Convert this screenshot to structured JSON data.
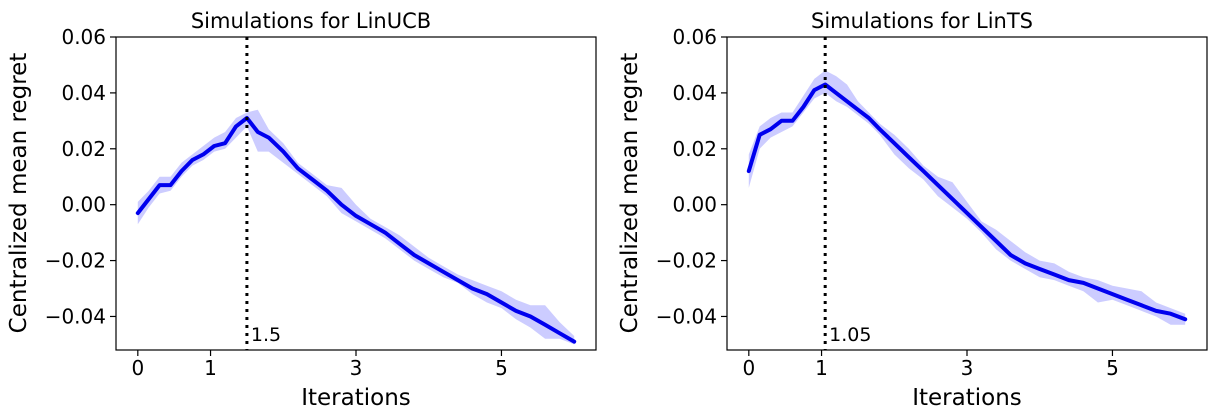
{
  "chart_data": [
    {
      "type": "line",
      "title": "Simulations for LinUCB",
      "xlabel": "Iterations",
      "ylabel": "Centralized mean regret",
      "xlim": [
        -0.3,
        6.3
      ],
      "ylim": [
        -0.052,
        0.06
      ],
      "xticks": [
        0,
        1,
        3,
        5
      ],
      "xtick_labels": [
        "0",
        "1",
        "3",
        "5"
      ],
      "yticks": [
        -0.04,
        -0.02,
        0.0,
        0.02,
        0.04,
        0.06
      ],
      "ytick_labels": [
        "−0.04",
        "−0.02",
        "0.00",
        "0.02",
        "0.04",
        "0.06"
      ],
      "vline": {
        "x": 1.5,
        "label": "1.5"
      },
      "series": [
        {
          "color": "#0000ee",
          "band_color": "#ccccff",
          "x": [
            0,
            0.15,
            0.3,
            0.45,
            0.6,
            0.75,
            0.9,
            1.05,
            1.2,
            1.35,
            1.5,
            1.65,
            1.8,
            2.0,
            2.2,
            2.4,
            2.6,
            2.8,
            3.0,
            3.2,
            3.4,
            3.6,
            3.8,
            4.0,
            4.2,
            4.4,
            4.6,
            4.8,
            5.0,
            5.2,
            5.4,
            5.6,
            5.8,
            6.0
          ],
          "mean": [
            -0.003,
            0.002,
            0.007,
            0.007,
            0.012,
            0.016,
            0.018,
            0.021,
            0.022,
            0.028,
            0.031,
            0.026,
            0.024,
            0.019,
            0.013,
            0.009,
            0.005,
            0.0,
            -0.004,
            -0.007,
            -0.01,
            -0.014,
            -0.018,
            -0.021,
            -0.024,
            -0.027,
            -0.03,
            -0.032,
            -0.035,
            -0.038,
            -0.04,
            -0.043,
            -0.046,
            -0.049
          ],
          "lower": [
            -0.007,
            -0.001,
            0.004,
            0.005,
            0.01,
            0.014,
            0.016,
            0.019,
            0.02,
            0.024,
            0.028,
            0.019,
            0.019,
            0.015,
            0.011,
            0.007,
            0.003,
            -0.003,
            -0.006,
            -0.009,
            -0.012,
            -0.016,
            -0.02,
            -0.023,
            -0.026,
            -0.028,
            -0.032,
            -0.035,
            -0.037,
            -0.041,
            -0.044,
            -0.048,
            -0.048,
            -0.05
          ],
          "upper": [
            0.001,
            0.005,
            0.01,
            0.01,
            0.015,
            0.018,
            0.021,
            0.024,
            0.026,
            0.031,
            0.033,
            0.034,
            0.027,
            0.022,
            0.015,
            0.011,
            0.007,
            0.006,
            0.0,
            -0.005,
            -0.008,
            -0.011,
            -0.015,
            -0.019,
            -0.022,
            -0.025,
            -0.027,
            -0.029,
            -0.031,
            -0.034,
            -0.036,
            -0.036,
            -0.042,
            -0.047
          ]
        }
      ]
    },
    {
      "type": "line",
      "title": "Simulations for LinTS",
      "xlabel": "Iterations",
      "ylabel": "Centralized mean regret",
      "xlim": [
        -0.3,
        6.3
      ],
      "ylim": [
        -0.052,
        0.06
      ],
      "xticks": [
        0,
        1,
        3,
        5
      ],
      "xtick_labels": [
        "0",
        "1",
        "3",
        "5"
      ],
      "yticks": [
        -0.04,
        -0.02,
        0.0,
        0.02,
        0.04,
        0.06
      ],
      "ytick_labels": [
        "−0.04",
        "−0.02",
        "0.00",
        "0.02",
        "0.04",
        "0.06"
      ],
      "vline": {
        "x": 1.05,
        "label": "1.05"
      },
      "series": [
        {
          "color": "#0000ee",
          "band_color": "#ccccff",
          "x": [
            0,
            0.15,
            0.3,
            0.45,
            0.6,
            0.75,
            0.9,
            1.05,
            1.2,
            1.35,
            1.5,
            1.65,
            1.8,
            2.0,
            2.2,
            2.4,
            2.6,
            2.8,
            3.0,
            3.2,
            3.4,
            3.6,
            3.8,
            4.0,
            4.2,
            4.4,
            4.6,
            4.8,
            5.0,
            5.2,
            5.4,
            5.6,
            5.8,
            6.0
          ],
          "mean": [
            0.012,
            0.025,
            0.027,
            0.03,
            0.03,
            0.035,
            0.041,
            0.043,
            0.04,
            0.037,
            0.034,
            0.031,
            0.027,
            0.022,
            0.017,
            0.012,
            0.007,
            0.002,
            -0.003,
            -0.008,
            -0.013,
            -0.018,
            -0.021,
            -0.023,
            -0.025,
            -0.027,
            -0.028,
            -0.03,
            -0.032,
            -0.034,
            -0.036,
            -0.038,
            -0.039,
            -0.041
          ],
          "lower": [
            0.006,
            0.02,
            0.024,
            0.026,
            0.028,
            0.033,
            0.038,
            0.04,
            0.037,
            0.035,
            0.032,
            0.029,
            0.025,
            0.018,
            0.013,
            0.009,
            0.003,
            -0.001,
            -0.005,
            -0.01,
            -0.016,
            -0.02,
            -0.023,
            -0.026,
            -0.027,
            -0.029,
            -0.031,
            -0.035,
            -0.034,
            -0.036,
            -0.038,
            -0.04,
            -0.043,
            -0.043
          ],
          "upper": [
            0.018,
            0.028,
            0.031,
            0.033,
            0.033,
            0.039,
            0.045,
            0.048,
            0.046,
            0.043,
            0.037,
            0.033,
            0.029,
            0.025,
            0.02,
            0.014,
            0.01,
            0.008,
            0.001,
            -0.006,
            -0.009,
            -0.013,
            -0.017,
            -0.02,
            -0.021,
            -0.024,
            -0.026,
            -0.027,
            -0.029,
            -0.03,
            -0.031,
            -0.035,
            -0.037,
            -0.039
          ]
        }
      ]
    }
  ]
}
